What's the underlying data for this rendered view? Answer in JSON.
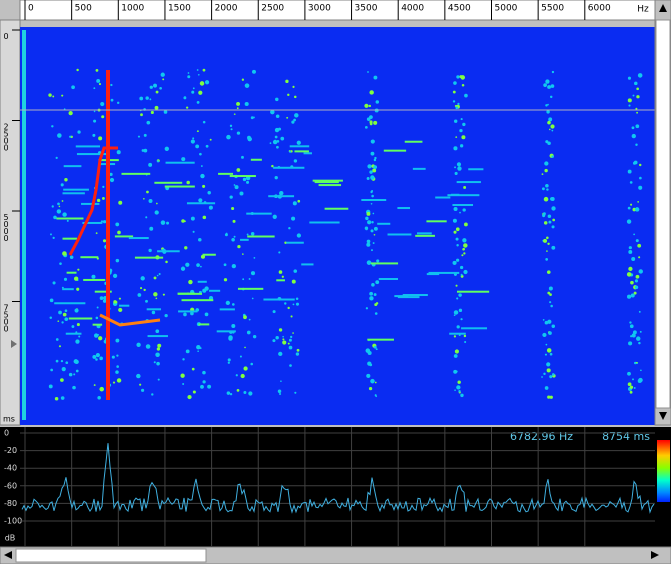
{
  "top_ruler": {
    "ticks": [
      0,
      500,
      1000,
      1500,
      2000,
      2500,
      3000,
      3500,
      4000,
      4500,
      5000,
      5500,
      6000
    ],
    "unit": "Hz"
  },
  "left_ruler": {
    "ticks": [
      0,
      2500,
      5000,
      7500
    ],
    "unit": "ms"
  },
  "spectrum": {
    "ticks": [
      0,
      -20,
      -40,
      -60,
      -80,
      -100
    ],
    "unit": "dB",
    "frequency": "6782.96 Hz",
    "time": "8754 ms"
  }
}
